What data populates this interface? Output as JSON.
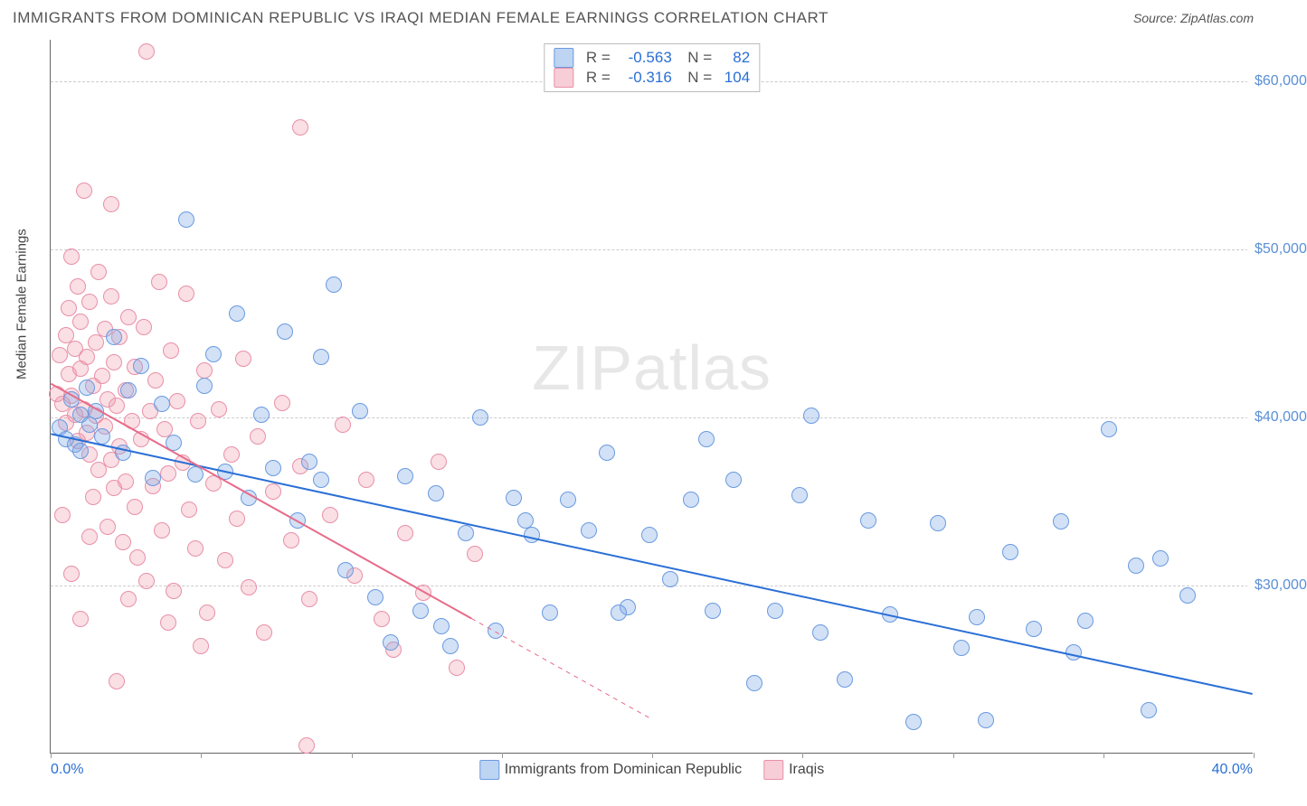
{
  "header": {
    "title": "IMMIGRANTS FROM DOMINICAN REPUBLIC VS IRAQI MEDIAN FEMALE EARNINGS CORRELATION CHART",
    "source_label": "Source:",
    "source_value": "ZipAtlas.com"
  },
  "watermark": "ZIPatlas",
  "y_axis": {
    "label": "Median Female Earnings",
    "min": 20000,
    "max": 62500,
    "ticks": [
      30000,
      40000,
      50000,
      60000
    ],
    "tick_labels": [
      "$30,000",
      "$40,000",
      "$50,000",
      "$60,000"
    ]
  },
  "x_axis": {
    "min": 0,
    "max": 40,
    "left_label": "0.0%",
    "right_label": "40.0%",
    "tick_positions": [
      0,
      5,
      10,
      15,
      20,
      25,
      30,
      35,
      40
    ]
  },
  "series": [
    {
      "id": "dominican",
      "label": "Immigrants from Dominican Republic",
      "fill_color": "rgba(126,168,230,0.35)",
      "stroke_color": "#6a9ae0",
      "swatch_fill": "#bdd4f2",
      "swatch_stroke": "#6a9ae0",
      "trend_color": "#2a6fd6",
      "trend_width": 2,
      "r_value": "-0.563",
      "n_value": "82",
      "point_radius": 9,
      "trend": {
        "x1": 0,
        "y1": 39000,
        "x2": 40,
        "y2": 23500,
        "dashed_after_x": null
      },
      "points": [
        [
          0.3,
          39400
        ],
        [
          0.5,
          38700
        ],
        [
          0.7,
          41100
        ],
        [
          0.8,
          38400
        ],
        [
          1.0,
          40200
        ],
        [
          1.0,
          38000
        ],
        [
          1.2,
          41800
        ],
        [
          1.3,
          39600
        ],
        [
          1.5,
          40400
        ],
        [
          1.7,
          38900
        ],
        [
          2.1,
          44800
        ],
        [
          2.4,
          37900
        ],
        [
          2.6,
          41600
        ],
        [
          3.0,
          43100
        ],
        [
          3.4,
          36400
        ],
        [
          3.7,
          40800
        ],
        [
          4.1,
          38500
        ],
        [
          4.5,
          51800
        ],
        [
          4.8,
          36600
        ],
        [
          5.1,
          41900
        ],
        [
          5.4,
          43800
        ],
        [
          5.8,
          36800
        ],
        [
          6.2,
          46200
        ],
        [
          6.6,
          35200
        ],
        [
          7.0,
          40200
        ],
        [
          7.4,
          37000
        ],
        [
          7.8,
          45100
        ],
        [
          8.2,
          33900
        ],
        [
          8.6,
          37400
        ],
        [
          9.0,
          36300
        ],
        [
          9.4,
          47900
        ],
        [
          9.8,
          30900
        ],
        [
          10.3,
          40400
        ],
        [
          10.8,
          29300
        ],
        [
          11.3,
          26600
        ],
        [
          11.8,
          36500
        ],
        [
          12.3,
          28500
        ],
        [
          12.8,
          35500
        ],
        [
          13.3,
          26400
        ],
        [
          13.8,
          33100
        ],
        [
          14.3,
          40000
        ],
        [
          14.8,
          27300
        ],
        [
          15.4,
          35200
        ],
        [
          16.0,
          33000
        ],
        [
          16.6,
          28400
        ],
        [
          17.2,
          35100
        ],
        [
          17.9,
          33300
        ],
        [
          18.5,
          37900
        ],
        [
          19.2,
          28700
        ],
        [
          19.9,
          33000
        ],
        [
          20.6,
          30400
        ],
        [
          21.3,
          35100
        ],
        [
          22.0,
          28500
        ],
        [
          22.7,
          36300
        ],
        [
          23.4,
          24200
        ],
        [
          24.1,
          28500
        ],
        [
          24.9,
          35400
        ],
        [
          25.6,
          27200
        ],
        [
          26.4,
          24400
        ],
        [
          27.2,
          33900
        ],
        [
          27.9,
          28300
        ],
        [
          28.7,
          21900
        ],
        [
          29.5,
          33700
        ],
        [
          30.3,
          26300
        ],
        [
          31.1,
          22000
        ],
        [
          31.9,
          32000
        ],
        [
          32.7,
          27400
        ],
        [
          33.6,
          33800
        ],
        [
          34.4,
          27900
        ],
        [
          35.2,
          39300
        ],
        [
          36.1,
          31200
        ],
        [
          36.9,
          31600
        ],
        [
          37.8,
          29400
        ],
        [
          36.5,
          22600
        ],
        [
          25.3,
          40100
        ],
        [
          21.8,
          38700
        ],
        [
          18.9,
          28400
        ],
        [
          15.8,
          33900
        ],
        [
          13.0,
          27600
        ],
        [
          34.0,
          26000
        ],
        [
          30.8,
          28100
        ],
        [
          9.0,
          43600
        ]
      ]
    },
    {
      "id": "iraqi",
      "label": "Iraqis",
      "fill_color": "rgba(240,150,170,0.30)",
      "stroke_color": "#e890a7",
      "swatch_fill": "#f7cdd8",
      "swatch_stroke": "#e890a7",
      "trend_color": "#e76b8a",
      "trend_width": 2,
      "r_value": "-0.316",
      "n_value": "104",
      "point_radius": 9,
      "trend": {
        "x1": 0,
        "y1": 42000,
        "x2": 20,
        "y2": 22000,
        "extend_to_x": 20,
        "dashed_after_x": 14
      },
      "points": [
        [
          0.2,
          41400
        ],
        [
          0.3,
          43700
        ],
        [
          0.4,
          40800
        ],
        [
          0.5,
          44900
        ],
        [
          0.5,
          39700
        ],
        [
          0.6,
          42600
        ],
        [
          0.6,
          46500
        ],
        [
          0.7,
          41300
        ],
        [
          0.7,
          49600
        ],
        [
          0.8,
          40200
        ],
        [
          0.8,
          44100
        ],
        [
          0.9,
          47800
        ],
        [
          0.9,
          38600
        ],
        [
          1.0,
          42900
        ],
        [
          1.0,
          45700
        ],
        [
          1.1,
          40500
        ],
        [
          1.1,
          53500
        ],
        [
          1.2,
          39100
        ],
        [
          1.2,
          43600
        ],
        [
          1.3,
          37800
        ],
        [
          1.3,
          46900
        ],
        [
          1.4,
          41900
        ],
        [
          1.4,
          35300
        ],
        [
          1.5,
          44500
        ],
        [
          1.5,
          40100
        ],
        [
          1.6,
          48700
        ],
        [
          1.6,
          36900
        ],
        [
          1.7,
          42500
        ],
        [
          1.8,
          39500
        ],
        [
          1.8,
          45300
        ],
        [
          1.9,
          33500
        ],
        [
          1.9,
          41100
        ],
        [
          2.0,
          37500
        ],
        [
          2.0,
          47200
        ],
        [
          2.1,
          43300
        ],
        [
          2.1,
          35800
        ],
        [
          2.2,
          40700
        ],
        [
          2.3,
          38300
        ],
        [
          2.3,
          44800
        ],
        [
          2.4,
          32600
        ],
        [
          2.5,
          41600
        ],
        [
          2.5,
          36200
        ],
        [
          2.6,
          46000
        ],
        [
          2.7,
          39800
        ],
        [
          2.8,
          34700
        ],
        [
          2.8,
          43000
        ],
        [
          2.9,
          31700
        ],
        [
          3.0,
          38700
        ],
        [
          3.1,
          45400
        ],
        [
          3.2,
          30300
        ],
        [
          3.2,
          61800
        ],
        [
          3.3,
          40400
        ],
        [
          3.4,
          35900
        ],
        [
          3.5,
          42200
        ],
        [
          3.6,
          48100
        ],
        [
          3.7,
          33300
        ],
        [
          3.8,
          39300
        ],
        [
          3.9,
          36700
        ],
        [
          4.0,
          44000
        ],
        [
          4.1,
          29700
        ],
        [
          4.2,
          41000
        ],
        [
          4.4,
          37300
        ],
        [
          4.5,
          47400
        ],
        [
          4.6,
          34500
        ],
        [
          4.8,
          32200
        ],
        [
          4.9,
          39800
        ],
        [
          5.1,
          42800
        ],
        [
          5.2,
          28400
        ],
        [
          5.4,
          36100
        ],
        [
          5.6,
          40500
        ],
        [
          5.8,
          31500
        ],
        [
          6.0,
          37800
        ],
        [
          6.2,
          34000
        ],
        [
          6.4,
          43500
        ],
        [
          6.6,
          29900
        ],
        [
          6.9,
          38900
        ],
        [
          7.1,
          27200
        ],
        [
          7.4,
          35600
        ],
        [
          7.7,
          40900
        ],
        [
          8.0,
          32700
        ],
        [
          8.3,
          37100
        ],
        [
          8.6,
          29200
        ],
        [
          8.3,
          57300
        ],
        [
          9.3,
          34200
        ],
        [
          9.7,
          39600
        ],
        [
          10.1,
          30600
        ],
        [
          10.5,
          36300
        ],
        [
          11.0,
          28000
        ],
        [
          11.4,
          26200
        ],
        [
          11.8,
          33100
        ],
        [
          12.4,
          29600
        ],
        [
          12.9,
          37400
        ],
        [
          13.5,
          25100
        ],
        [
          14.1,
          31900
        ],
        [
          2.2,
          24300
        ],
        [
          1.0,
          28000
        ],
        [
          0.7,
          30700
        ],
        [
          1.3,
          32900
        ],
        [
          2.6,
          29200
        ],
        [
          3.9,
          27800
        ],
        [
          5.0,
          26400
        ],
        [
          0.4,
          34200
        ],
        [
          2.0,
          52700
        ],
        [
          8.5,
          20500
        ]
      ]
    }
  ],
  "bottom_legend": {
    "items": [
      "Immigrants from Dominican Republic",
      "Iraqis"
    ]
  }
}
